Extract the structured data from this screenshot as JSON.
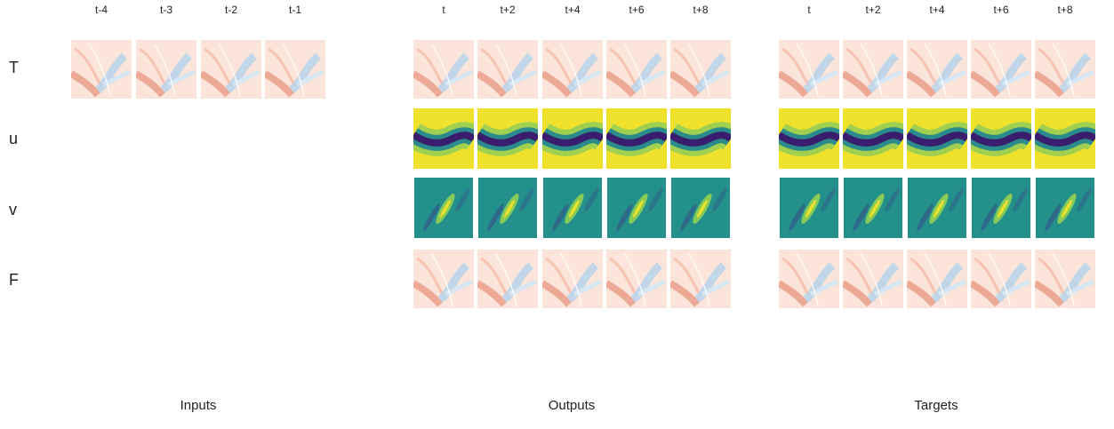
{
  "column_labels": {
    "inputs": [
      "t-4",
      "t-3",
      "t-2",
      "t-1"
    ],
    "outputs": [
      "t",
      "t+2",
      "t+4",
      "t+6",
      "t+8"
    ],
    "targets": [
      "t",
      "t+2",
      "t+4",
      "t+6",
      "t+8"
    ]
  },
  "row_labels": [
    "T",
    "u",
    "v",
    "F"
  ],
  "group_labels": {
    "inputs": "Inputs",
    "outputs": "Outputs",
    "targets": "Targets"
  }
}
